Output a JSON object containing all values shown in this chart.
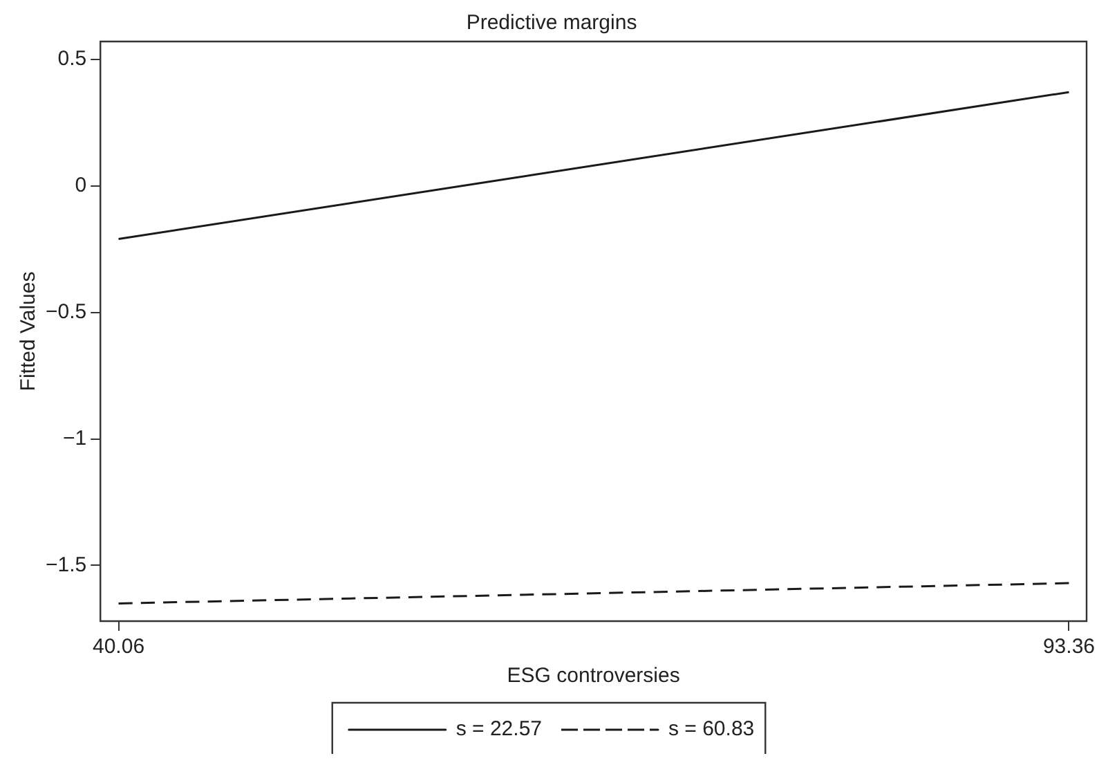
{
  "chart_data": {
    "type": "line",
    "title": "Predictive margins",
    "xlabel": "ESG controversies",
    "ylabel": "Fitted Values",
    "x": [
      40.06,
      93.36
    ],
    "series": [
      {
        "name": "s = 22.57",
        "color": "#1a1a1a",
        "values": [
          -0.21,
          0.37
        ],
        "line_style": "solid"
      },
      {
        "name": "s = 60.83",
        "color": "#1a1a1a",
        "values": [
          -1.65,
          -1.57
        ],
        "line_style": "dashed"
      }
    ],
    "xlim": [
      39.04,
      94.35
    ],
    "xticks": [
      40.06,
      93.36
    ],
    "ylim": [
      -1.72,
      0.57
    ],
    "yticks": [
      -1.5,
      -1,
      -0.5,
      0,
      0.5
    ],
    "grid": false,
    "legend": "bottom",
    "marker": "none"
  }
}
